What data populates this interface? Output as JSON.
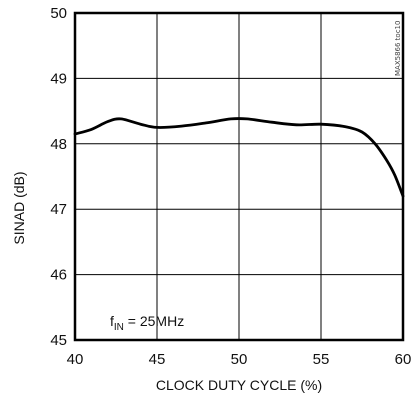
{
  "chart_data": {
    "type": "line",
    "title": "",
    "xlabel": "CLOCK DUTY CYCLE (%)",
    "ylabel": "SINAD (dB)",
    "xlim": [
      40,
      60
    ],
    "ylim": [
      45,
      50
    ],
    "x_ticks": [
      "40",
      "45",
      "50",
      "55",
      "60"
    ],
    "y_ticks": [
      "45",
      "46",
      "47",
      "48",
      "49",
      "50"
    ],
    "grid": true,
    "series": [
      {
        "x": [
          40,
          41,
          42,
          42.8,
          44,
          45,
          46.5,
          48,
          49.5,
          50.5,
          52,
          53.5,
          55,
          56.5,
          57.5,
          58.3,
          59,
          59.5,
          60
        ],
        "values": [
          48.15,
          48.22,
          48.34,
          48.38,
          48.3,
          48.25,
          48.27,
          48.32,
          48.38,
          48.38,
          48.33,
          48.29,
          48.3,
          48.26,
          48.18,
          48.0,
          47.75,
          47.52,
          47.2
        ]
      }
    ],
    "annotation": {
      "prefix": "f",
      "subscript": "IN",
      "suffix": " = 25MHz"
    },
    "watermark": "MAX5866 toc10",
    "colors": {
      "line": "#000000",
      "grid": "#000000",
      "frame": "#000000"
    }
  }
}
